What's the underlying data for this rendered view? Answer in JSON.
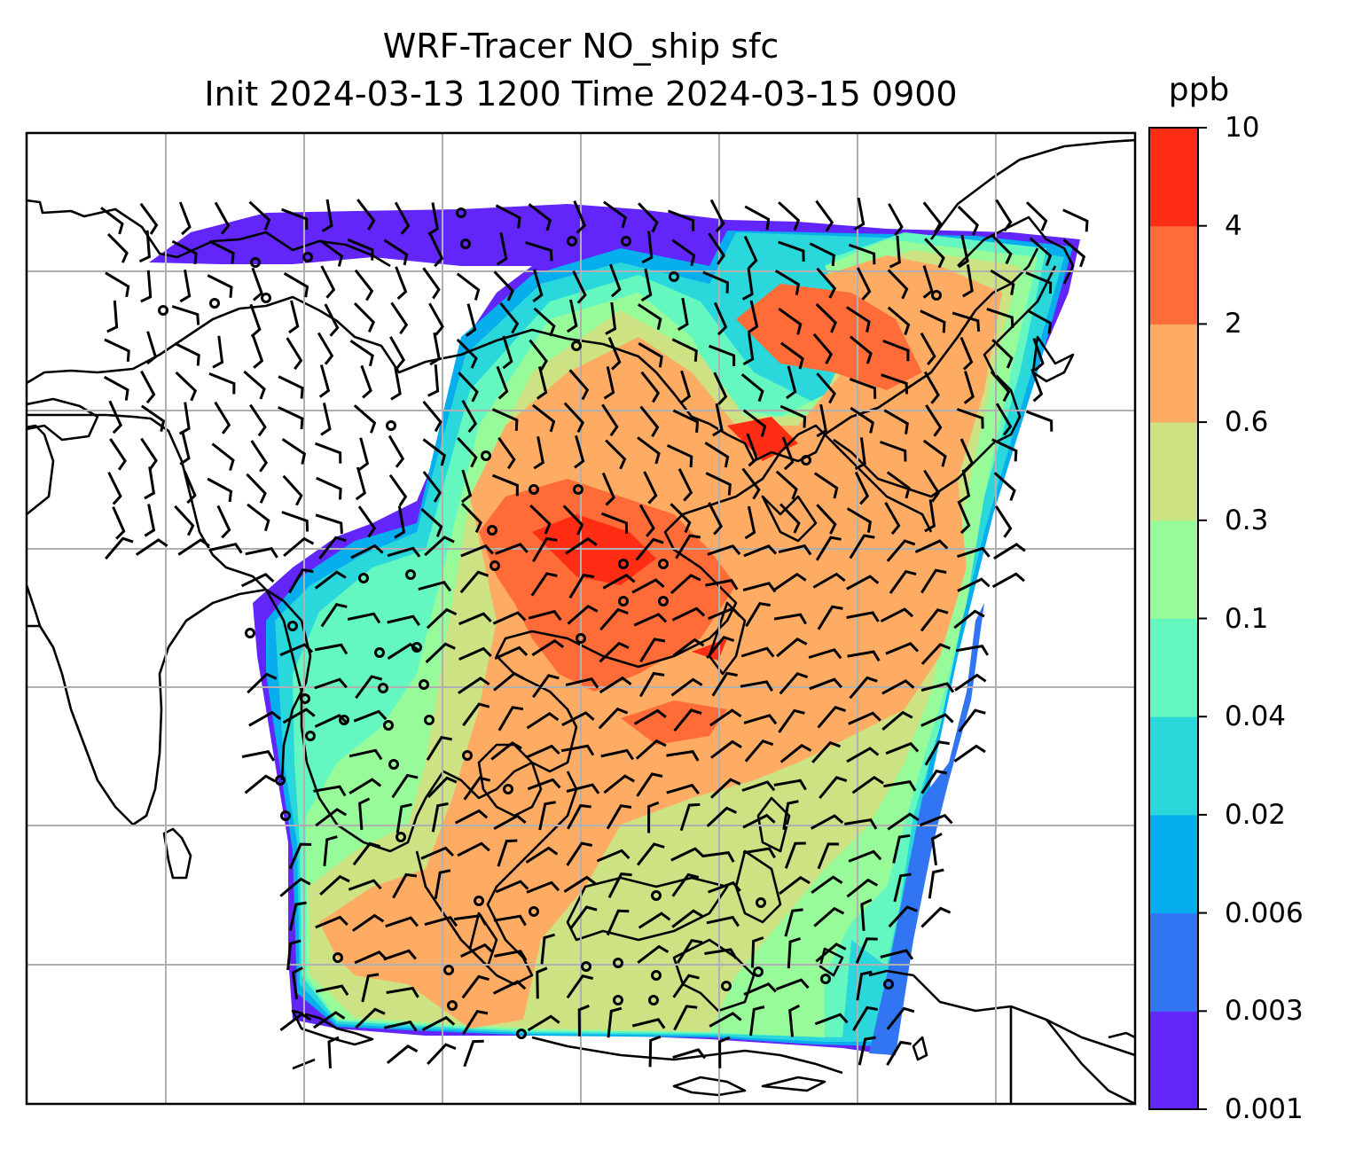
{
  "title": {
    "line1": "WRF-Tracer NO_ship sfc",
    "line2": "Init 2024-03-13 1200 Time 2024-03-15 0900"
  },
  "map": {
    "variable": "NO_ship",
    "level": "sfc",
    "projection": "lat-lon",
    "gridlines": true,
    "overlays": [
      "coastlines",
      "wind-barbs",
      "calm-circles"
    ]
  },
  "colorbar": {
    "units": "ppb",
    "ticks": [
      "0.001",
      "0.003",
      "0.006",
      "0.02",
      "0.04",
      "0.1",
      "0.3",
      "0.6",
      "2",
      "4",
      "10"
    ],
    "colors": [
      "#6226fb",
      "#3275f3",
      "#06aeed",
      "#2ad8dc",
      "#64f8c0",
      "#98fb9a",
      "#cce283",
      "#feac63",
      "#ff6c38",
      "#ff2d14"
    ]
  }
}
